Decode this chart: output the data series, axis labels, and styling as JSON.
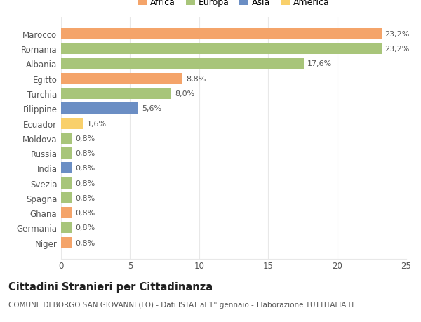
{
  "countries": [
    "Niger",
    "Germania",
    "Ghana",
    "Spagna",
    "Svezia",
    "India",
    "Russia",
    "Moldova",
    "Ecuador",
    "Filippine",
    "Turchia",
    "Egitto",
    "Albania",
    "Romania",
    "Marocco"
  ],
  "values": [
    0.8,
    0.8,
    0.8,
    0.8,
    0.8,
    0.8,
    0.8,
    0.8,
    1.6,
    5.6,
    8.0,
    8.8,
    17.6,
    23.2,
    23.2
  ],
  "labels": [
    "0,8%",
    "0,8%",
    "0,8%",
    "0,8%",
    "0,8%",
    "0,8%",
    "0,8%",
    "0,8%",
    "1,6%",
    "5,6%",
    "8,0%",
    "8,8%",
    "17,6%",
    "23,2%",
    "23,2%"
  ],
  "colors": [
    "#f4a46a",
    "#a8c57a",
    "#f4a46a",
    "#a8c57a",
    "#a8c57a",
    "#6b8ec4",
    "#a8c57a",
    "#a8c57a",
    "#f9d06b",
    "#6b8ec4",
    "#a8c57a",
    "#f4a46a",
    "#a8c57a",
    "#a8c57a",
    "#f4a46a"
  ],
  "legend_labels": [
    "Africa",
    "Europa",
    "Asia",
    "America"
  ],
  "legend_colors": [
    "#f4a46a",
    "#a8c57a",
    "#6b8ec4",
    "#f9d06b"
  ],
  "title": "Cittadini Stranieri per Cittadinanza",
  "subtitle": "COMUNE DI BORGO SAN GIOVANNI (LO) - Dati ISTAT al 1° gennaio - Elaborazione TUTTITALIA.IT",
  "xlim": [
    0,
    25
  ],
  "xticks": [
    0,
    5,
    10,
    15,
    20,
    25
  ],
  "bar_height": 0.75,
  "background_color": "#ffffff",
  "grid_color": "#e8e8e8",
  "text_color": "#555555",
  "title_fontsize": 10.5,
  "subtitle_fontsize": 7.5,
  "tick_fontsize": 8.5,
  "label_fontsize": 8.0
}
